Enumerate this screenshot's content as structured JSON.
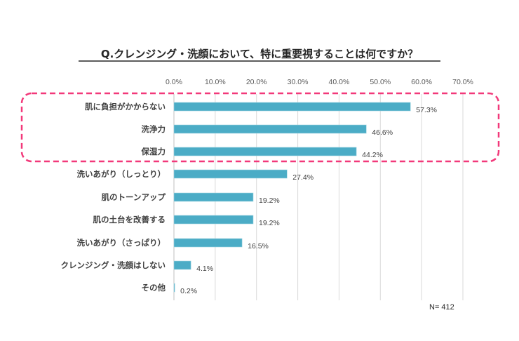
{
  "chart_data": {
    "type": "bar",
    "orientation": "horizontal",
    "title": "Q.クレンジング・洗顔において、特に重要視することは何ですか？",
    "categories": [
      "肌に負担がかからない",
      "洗浄力",
      "保湿力",
      "洗いあがり（しっとり）",
      "肌のトーンアップ",
      "肌の土台を改善する",
      "洗いあがり（さっぱり）",
      "クレンジング・洗顔はしない",
      "その他"
    ],
    "values": [
      57.3,
      46.6,
      44.2,
      27.4,
      19.2,
      19.2,
      16.5,
      4.1,
      0.2
    ],
    "value_labels": [
      "57.3%",
      "46.6%",
      "44.2%",
      "27.4%",
      "19.2%",
      "19.2%",
      "16.5%",
      "4.1%",
      "0.2%"
    ],
    "xlim": [
      0,
      70
    ],
    "x_ticks": [
      "0.0%",
      "10.0%",
      "20.0%",
      "30.0%",
      "40.0%",
      "50.0%",
      "60.0%",
      "70.0%"
    ],
    "axis_position": "top",
    "grid": true,
    "bar_color": "#4BACC6",
    "highlight": {
      "categories": [
        "肌に負担がかからない",
        "洗浄力",
        "保湿力"
      ],
      "style": "dashed rounded box",
      "color": "#F2397A"
    },
    "note": "N= 412"
  }
}
